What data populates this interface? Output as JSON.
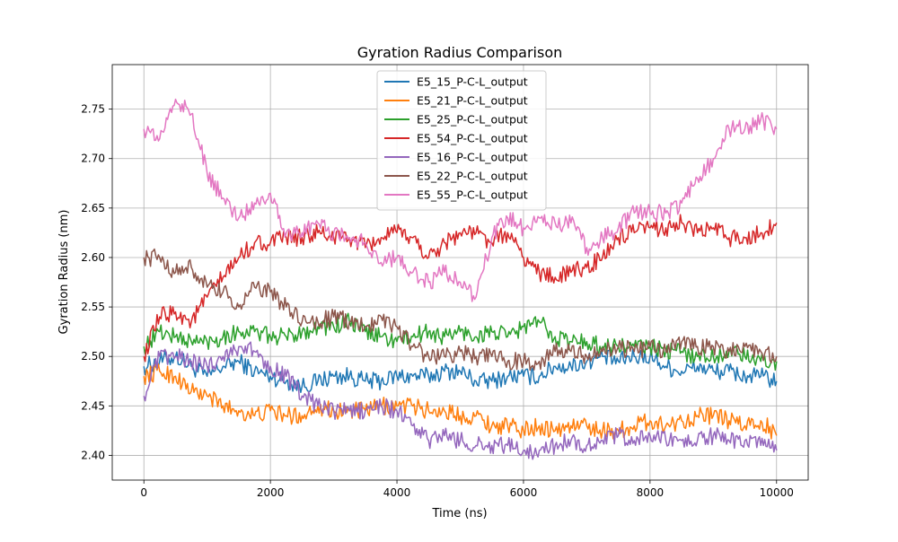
{
  "chart_data": {
    "type": "line",
    "title": "Gyration Radius Comparison",
    "xlabel": "Time (ns)",
    "ylabel": "Gyration Radius (nm)",
    "xlim": [
      -500,
      10500
    ],
    "ylim": [
      2.375,
      2.795
    ],
    "xticks": [
      0,
      2000,
      4000,
      6000,
      8000,
      10000
    ],
    "yticks": [
      2.4,
      2.45,
      2.5,
      2.55,
      2.6,
      2.65,
      2.7,
      2.75
    ],
    "xtick_labels": [
      "0",
      "2000",
      "4000",
      "6000",
      "8000",
      "10000"
    ],
    "ytick_labels": [
      "2.40",
      "2.45",
      "2.50",
      "2.55",
      "2.60",
      "2.65",
      "2.70",
      "2.75"
    ],
    "grid": true,
    "legend_position": "top-center",
    "x": [
      0,
      250,
      500,
      750,
      1000,
      1250,
      1500,
      1750,
      2000,
      2250,
      2500,
      2750,
      3000,
      3250,
      3500,
      3750,
      4000,
      4250,
      4500,
      4750,
      5000,
      5250,
      5500,
      5750,
      6000,
      6250,
      6500,
      6750,
      7000,
      7250,
      7500,
      7750,
      8000,
      8250,
      8500,
      8750,
      9000,
      9250,
      9500,
      9750,
      10000
    ],
    "series": [
      {
        "name": "E5_15_P-C-L_output",
        "color": "#1f77b4",
        "values": [
          2.49,
          2.495,
          2.5,
          2.49,
          2.48,
          2.49,
          2.495,
          2.485,
          2.48,
          2.475,
          2.47,
          2.475,
          2.48,
          2.48,
          2.475,
          2.475,
          2.48,
          2.48,
          2.48,
          2.485,
          2.485,
          2.475,
          2.475,
          2.48,
          2.48,
          2.48,
          2.49,
          2.49,
          2.495,
          2.5,
          2.495,
          2.5,
          2.5,
          2.49,
          2.485,
          2.49,
          2.485,
          2.485,
          2.48,
          2.48,
          2.475
        ]
      },
      {
        "name": "E5_21_P-C-L_output",
        "color": "#ff7f0e",
        "values": [
          2.48,
          2.485,
          2.48,
          2.465,
          2.46,
          2.45,
          2.445,
          2.44,
          2.445,
          2.44,
          2.44,
          2.45,
          2.445,
          2.445,
          2.445,
          2.45,
          2.45,
          2.45,
          2.445,
          2.445,
          2.44,
          2.44,
          2.43,
          2.43,
          2.425,
          2.43,
          2.425,
          2.43,
          2.43,
          2.425,
          2.425,
          2.43,
          2.435,
          2.43,
          2.435,
          2.44,
          2.44,
          2.435,
          2.43,
          2.435,
          2.42
        ]
      },
      {
        "name": "E5_25_P-C-L_output",
        "color": "#2ca02c",
        "values": [
          2.51,
          2.525,
          2.52,
          2.515,
          2.515,
          2.52,
          2.525,
          2.525,
          2.52,
          2.52,
          2.525,
          2.53,
          2.53,
          2.535,
          2.525,
          2.52,
          2.515,
          2.52,
          2.525,
          2.52,
          2.525,
          2.52,
          2.525,
          2.52,
          2.53,
          2.535,
          2.52,
          2.515,
          2.515,
          2.51,
          2.51,
          2.51,
          2.51,
          2.505,
          2.505,
          2.5,
          2.5,
          2.505,
          2.5,
          2.495,
          2.495
        ]
      },
      {
        "name": "E5_54_P-C-L_output",
        "color": "#d62728",
        "values": [
          2.5,
          2.54,
          2.545,
          2.535,
          2.56,
          2.58,
          2.6,
          2.615,
          2.615,
          2.62,
          2.62,
          2.625,
          2.62,
          2.62,
          2.61,
          2.62,
          2.625,
          2.62,
          2.6,
          2.615,
          2.625,
          2.625,
          2.615,
          2.625,
          2.6,
          2.585,
          2.58,
          2.585,
          2.59,
          2.6,
          2.62,
          2.625,
          2.63,
          2.63,
          2.635,
          2.625,
          2.63,
          2.62,
          2.62,
          2.625,
          2.635
        ]
      },
      {
        "name": "E5_16_P-C-L_output",
        "color": "#9467bd",
        "values": [
          2.46,
          2.5,
          2.5,
          2.495,
          2.49,
          2.5,
          2.51,
          2.505,
          2.49,
          2.48,
          2.46,
          2.45,
          2.445,
          2.445,
          2.445,
          2.45,
          2.445,
          2.43,
          2.415,
          2.42,
          2.415,
          2.41,
          2.41,
          2.41,
          2.405,
          2.405,
          2.41,
          2.415,
          2.41,
          2.415,
          2.42,
          2.415,
          2.42,
          2.415,
          2.415,
          2.415,
          2.42,
          2.415,
          2.415,
          2.41,
          2.405
        ]
      },
      {
        "name": "E5_22_P-C-L_output",
        "color": "#8c564b",
        "values": [
          2.6,
          2.6,
          2.585,
          2.59,
          2.57,
          2.565,
          2.55,
          2.57,
          2.565,
          2.55,
          2.535,
          2.535,
          2.54,
          2.535,
          2.53,
          2.54,
          2.53,
          2.51,
          2.5,
          2.5,
          2.505,
          2.5,
          2.5,
          2.495,
          2.495,
          2.495,
          2.505,
          2.505,
          2.5,
          2.505,
          2.51,
          2.505,
          2.51,
          2.505,
          2.515,
          2.51,
          2.51,
          2.505,
          2.51,
          2.505,
          2.5
        ]
      },
      {
        "name": "E5_55_P-C-L_output",
        "color": "#e377c2",
        "values": [
          2.73,
          2.72,
          2.76,
          2.745,
          2.685,
          2.66,
          2.64,
          2.655,
          2.665,
          2.625,
          2.625,
          2.635,
          2.625,
          2.62,
          2.615,
          2.595,
          2.6,
          2.585,
          2.575,
          2.585,
          2.575,
          2.56,
          2.62,
          2.64,
          2.63,
          2.64,
          2.635,
          2.635,
          2.61,
          2.62,
          2.63,
          2.645,
          2.645,
          2.645,
          2.655,
          2.68,
          2.7,
          2.73,
          2.73,
          2.74,
          2.73
        ]
      }
    ]
  }
}
